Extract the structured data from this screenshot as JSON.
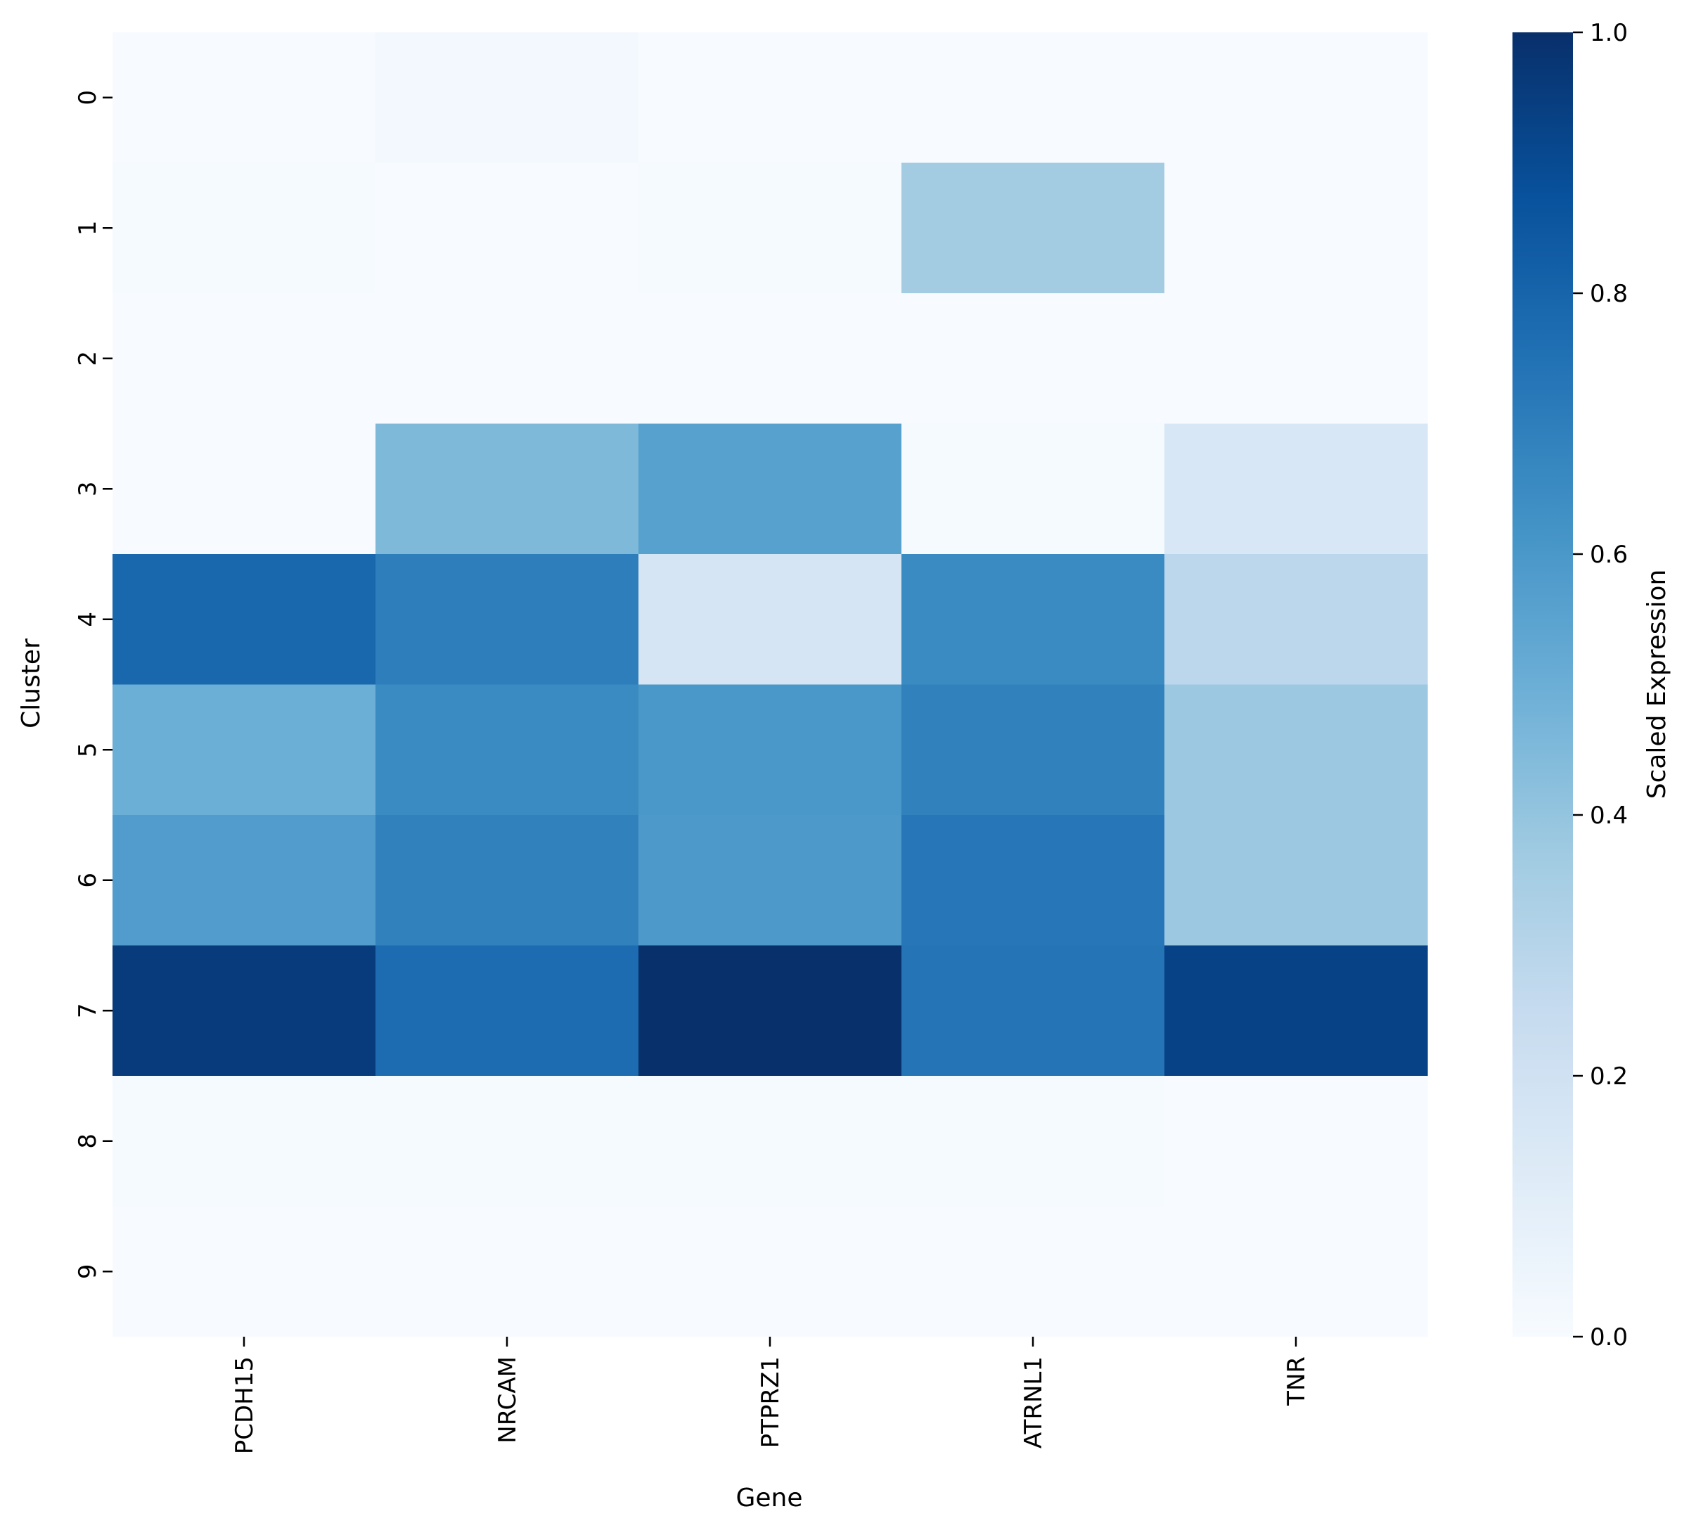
{
  "chart_data": {
    "type": "heatmap",
    "title": "",
    "xlabel": "Gene",
    "ylabel": "Cluster",
    "x_categories": [
      "PCDH15",
      "NRCAM",
      "PTPRZ1",
      "ATRNL1",
      "TNR"
    ],
    "y_categories": [
      "0",
      "1",
      "2",
      "3",
      "4",
      "5",
      "6",
      "7",
      "8",
      "9"
    ],
    "values": [
      [
        0.0,
        0.02,
        0.0,
        0.0,
        0.0
      ],
      [
        0.01,
        0.0,
        0.01,
        0.36,
        0.0
      ],
      [
        0.0,
        0.0,
        0.0,
        0.0,
        0.0
      ],
      [
        0.0,
        0.45,
        0.56,
        0.01,
        0.16
      ],
      [
        0.79,
        0.7,
        0.17,
        0.65,
        0.28
      ],
      [
        0.5,
        0.65,
        0.6,
        0.69,
        0.38
      ],
      [
        0.58,
        0.69,
        0.59,
        0.73,
        0.38
      ],
      [
        0.96,
        0.77,
        1.0,
        0.74,
        0.93
      ],
      [
        0.01,
        0.01,
        0.01,
        0.01,
        0.0
      ],
      [
        0.0,
        0.0,
        0.0,
        0.0,
        0.0
      ]
    ],
    "colorbar": {
      "label": "Scaled Expression",
      "range": [
        0,
        1
      ],
      "ticks": [
        "0.0",
        "0.2",
        "0.4",
        "0.6",
        "0.8",
        "1.0"
      ],
      "colormap": "Blues",
      "colors": [
        "#f7fbff",
        "#deebf7",
        "#c6dbef",
        "#9ecae1",
        "#6baed6",
        "#4292c6",
        "#2171b5",
        "#08519c",
        "#08306b"
      ]
    }
  }
}
